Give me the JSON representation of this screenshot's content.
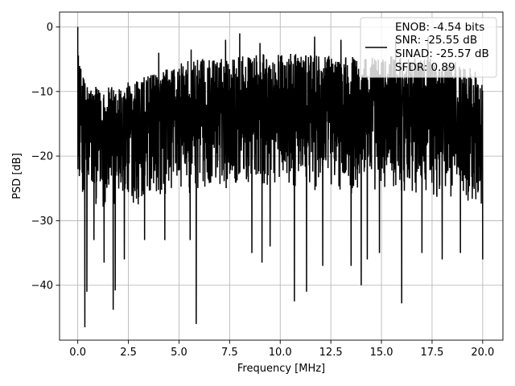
{
  "chart_data": {
    "type": "line",
    "xlabel": "Frequency [MHz]",
    "ylabel": "PSD [dB]",
    "xlim": [
      -0.9,
      21.0
    ],
    "ylim": [
      -48.5,
      2.3
    ],
    "xticks": [
      0.0,
      2.5,
      5.0,
      7.5,
      10.0,
      12.5,
      15.0,
      17.5,
      20.0
    ],
    "xtick_labels": [
      "0.0",
      "2.5",
      "5.0",
      "7.5",
      "10.0",
      "12.5",
      "15.0",
      "17.5",
      "20.0"
    ],
    "yticks": [
      0,
      -10,
      -20,
      -30,
      -40
    ],
    "ytick_labels": [
      "0",
      "−10",
      "−20",
      "−30",
      "−40"
    ],
    "grid": true,
    "legend_position": "top-right",
    "line_color": "#000000",
    "legend_entries": [
      "ENOB: -4.54 bits",
      "SNR: -25.55 dB",
      "SINAD: -25.57 dB",
      "SFDR: 0.89"
    ],
    "series": [
      {
        "style": "noisy-psd",
        "envelope": {
          "x": [
            0.0,
            0.05,
            0.2,
            0.5,
            1.0,
            2.0,
            3.0,
            4.0,
            5.0,
            6.0,
            8.0,
            10.0,
            12.0,
            14.0,
            16.0,
            18.0,
            19.5,
            20.0
          ],
          "upper": [
            0.0,
            -5.0,
            -7.0,
            -8.5,
            -9.5,
            -9.0,
            -8.0,
            -7.0,
            -5.5,
            -5.0,
            -4.5,
            -4.0,
            -4.5,
            -4.5,
            -4.5,
            -5.0,
            -6.0,
            -9.0
          ],
          "lower": [
            -23.0,
            -25.0,
            -26.0,
            -27.0,
            -28.0,
            -28.0,
            -27.5,
            -27.0,
            -26.0,
            -25.5,
            -25.0,
            -25.0,
            -25.5,
            -26.0,
            -26.0,
            -26.5,
            -27.0,
            -28.0
          ]
        },
        "dips": [
          {
            "x": 0.35,
            "y": -46.5
          },
          {
            "x": 0.45,
            "y": -41.0
          },
          {
            "x": 0.8,
            "y": -33.0
          },
          {
            "x": 1.3,
            "y": -36.5
          },
          {
            "x": 1.75,
            "y": -43.8
          },
          {
            "x": 1.85,
            "y": -40.8
          },
          {
            "x": 2.3,
            "y": -36.0
          },
          {
            "x": 3.3,
            "y": -33.0
          },
          {
            "x": 4.3,
            "y": -33.0
          },
          {
            "x": 5.55,
            "y": -33.0
          },
          {
            "x": 5.85,
            "y": -46.0
          },
          {
            "x": 7.3,
            "y": -32.0
          },
          {
            "x": 8.6,
            "y": -35.0
          },
          {
            "x": 9.1,
            "y": -36.5
          },
          {
            "x": 9.5,
            "y": -34.0
          },
          {
            "x": 10.7,
            "y": -42.5
          },
          {
            "x": 11.3,
            "y": -41.0
          },
          {
            "x": 12.1,
            "y": -37.0
          },
          {
            "x": 13.5,
            "y": -37.0
          },
          {
            "x": 14.0,
            "y": -40.0
          },
          {
            "x": 14.3,
            "y": -36.0
          },
          {
            "x": 14.9,
            "y": -35.0
          },
          {
            "x": 16.0,
            "y": -42.8
          },
          {
            "x": 17.0,
            "y": -35.0
          },
          {
            "x": 18.0,
            "y": -36.0
          },
          {
            "x": 18.9,
            "y": -35.0
          },
          {
            "x": 20.0,
            "y": -36.0
          }
        ],
        "peaks": [
          {
            "x": 0.0,
            "y": 0.0
          },
          {
            "x": 4.0,
            "y": -4.0
          },
          {
            "x": 5.6,
            "y": -3.5
          },
          {
            "x": 7.3,
            "y": -2.0
          },
          {
            "x": 8.0,
            "y": -1.0
          },
          {
            "x": 9.0,
            "y": -2.5
          },
          {
            "x": 11.7,
            "y": -1.5
          },
          {
            "x": 13.0,
            "y": -2.0
          },
          {
            "x": 15.7,
            "y": -2.0
          },
          {
            "x": 17.3,
            "y": -1.5
          }
        ]
      }
    ]
  }
}
